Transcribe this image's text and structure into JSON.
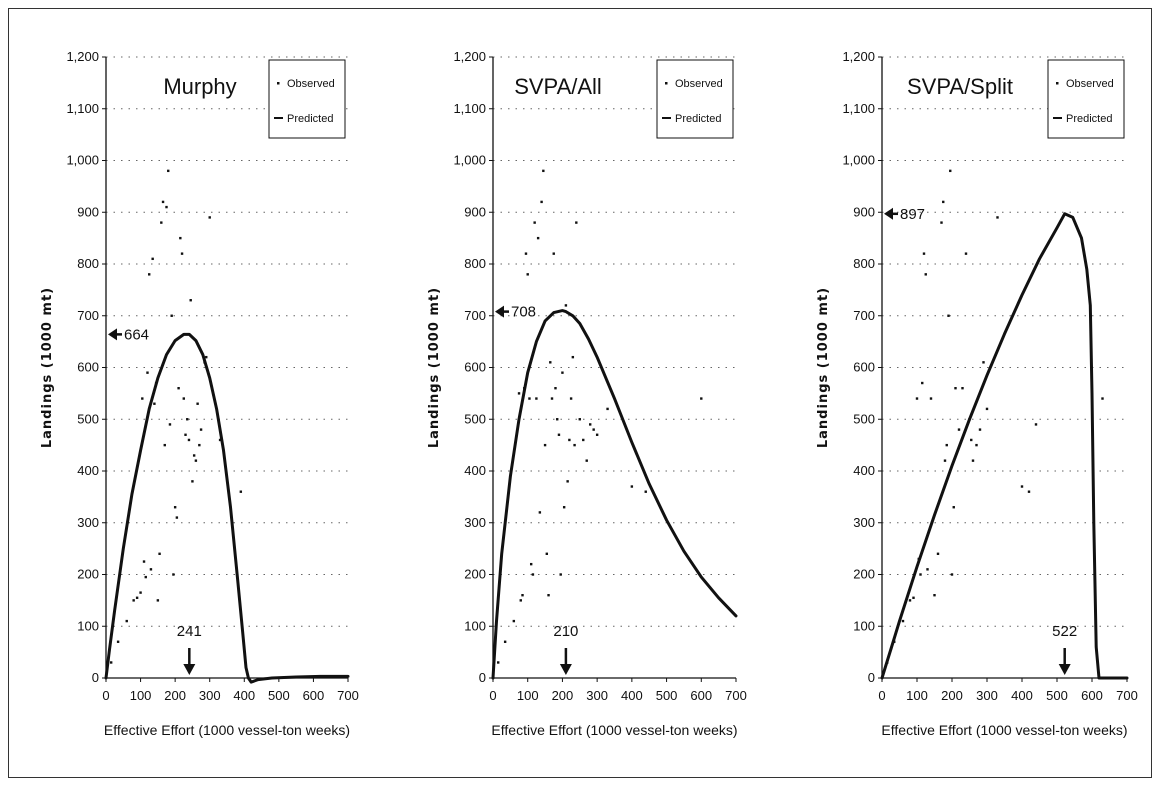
{
  "chart_data": [
    {
      "type": "scatter",
      "title": "Murphy",
      "xlabel": "Effective Effort (1000 vessel-ton weeks)",
      "ylabel": "Landings (1000 mt)",
      "xlim": [
        0,
        700
      ],
      "ylim": [
        0,
        1200
      ],
      "xticks": [
        "0",
        "100",
        "200",
        "300",
        "400",
        "500",
        "600",
        "700"
      ],
      "yticks": [
        "0",
        "100",
        "200",
        "300",
        "400",
        "500",
        "600",
        "700",
        "800",
        "900",
        "1,000",
        "1,100",
        "1,200"
      ],
      "grid": "horizontal-dotted",
      "legend": {
        "position": "top-right",
        "entries": [
          "Observed",
          "Predicted"
        ]
      },
      "series": [
        {
          "name": "Observed",
          "kind": "points",
          "x": [
            15,
            35,
            60,
            80,
            90,
            100,
            105,
            110,
            115,
            120,
            125,
            130,
            135,
            140,
            145,
            150,
            155,
            160,
            165,
            170,
            175,
            180,
            185,
            190,
            195,
            200,
            205,
            210,
            215,
            220,
            225,
            230,
            235,
            240,
            245,
            250,
            255,
            260,
            265,
            270,
            275,
            285,
            290,
            300,
            330,
            390
          ],
          "y": [
            30,
            70,
            110,
            150,
            155,
            165,
            540,
            225,
            195,
            590,
            780,
            210,
            810,
            530,
            570,
            150,
            240,
            880,
            920,
            450,
            910,
            980,
            490,
            700,
            200,
            330,
            310,
            560,
            850,
            820,
            540,
            470,
            500,
            460,
            730,
            380,
            430,
            420,
            530,
            450,
            480,
            610,
            620,
            890,
            460,
            360
          ]
        },
        {
          "name": "Predicted",
          "kind": "line",
          "x": [
            0,
            10,
            25,
            50,
            75,
            100,
            125,
            150,
            175,
            200,
            225,
            241,
            260,
            280,
            300,
            320,
            340,
            360,
            380,
            395,
            405,
            412,
            420,
            440,
            480,
            550,
            620,
            700
          ],
          "y": [
            0,
            55,
            130,
            250,
            355,
            440,
            520,
            580,
            625,
            652,
            664,
            664,
            652,
            625,
            580,
            520,
            440,
            330,
            195,
            90,
            20,
            0,
            -8,
            -3,
            0,
            2,
            3,
            3
          ]
        }
      ],
      "annotations": [
        {
          "text": "664",
          "target": "y",
          "value": 664
        },
        {
          "text": "241",
          "target": "x",
          "value": 241
        }
      ]
    },
    {
      "type": "scatter",
      "title": "SVPA/All",
      "xlabel": "Effective Effort (1000 vessel-ton weeks)",
      "ylabel": "Landings (1000 mt)",
      "xlim": [
        0,
        700
      ],
      "ylim": [
        0,
        1200
      ],
      "xticks": [
        "0",
        "100",
        "200",
        "300",
        "400",
        "500",
        "600",
        "700"
      ],
      "yticks": [
        "0",
        "100",
        "200",
        "300",
        "400",
        "500",
        "600",
        "700",
        "800",
        "900",
        "1,000",
        "1,100",
        "1,200"
      ],
      "grid": "horizontal-dotted",
      "legend": {
        "position": "top-right",
        "entries": [
          "Observed",
          "Predicted"
        ]
      },
      "series": [
        {
          "name": "Observed",
          "kind": "points",
          "x": [
            15,
            35,
            60,
            75,
            80,
            85,
            90,
            95,
            100,
            105,
            110,
            115,
            120,
            125,
            130,
            135,
            140,
            145,
            150,
            155,
            160,
            165,
            170,
            175,
            180,
            185,
            190,
            195,
            200,
            205,
            210,
            215,
            220,
            225,
            230,
            235,
            240,
            250,
            260,
            270,
            280,
            290,
            300,
            330,
            400,
            440,
            600
          ],
          "y": [
            30,
            70,
            110,
            550,
            150,
            160,
            560,
            820,
            780,
            540,
            220,
            200,
            880,
            540,
            850,
            320,
            920,
            980,
            450,
            240,
            160,
            610,
            540,
            820,
            560,
            500,
            470,
            200,
            590,
            330,
            720,
            380,
            460,
            540,
            620,
            450,
            880,
            500,
            460,
            420,
            490,
            480,
            470,
            520,
            370,
            360,
            540
          ]
        },
        {
          "name": "Predicted",
          "kind": "line",
          "x": [
            0,
            10,
            25,
            50,
            75,
            100,
            125,
            150,
            175,
            200,
            210,
            230,
            250,
            275,
            300,
            350,
            400,
            450,
            500,
            550,
            600,
            650,
            700
          ],
          "y": [
            0,
            110,
            240,
            390,
            500,
            590,
            650,
            690,
            706,
            710,
            708,
            700,
            685,
            655,
            620,
            540,
            455,
            375,
            305,
            245,
            195,
            155,
            120
          ]
        }
      ],
      "annotations": [
        {
          "text": "708",
          "target": "y",
          "value": 708
        },
        {
          "text": "210",
          "target": "x",
          "value": 210
        }
      ]
    },
    {
      "type": "scatter",
      "title": "SVPA/Split",
      "xlabel": "Effective Effort (1000 vessel-ton weeks)",
      "ylabel": "Landings (1000 mt)",
      "xlim": [
        0,
        700
      ],
      "ylim": [
        0,
        1200
      ],
      "xticks": [
        "0",
        "100",
        "200",
        "300",
        "400",
        "500",
        "600",
        "700"
      ],
      "yticks": [
        "0",
        "100",
        "200",
        "300",
        "400",
        "500",
        "600",
        "700",
        "800",
        "900",
        "1,000",
        "1,100",
        "1,200"
      ],
      "grid": "horizontal-dotted",
      "legend": {
        "position": "top-right",
        "entries": [
          "Observed",
          "Predicted"
        ]
      },
      "series": [
        {
          "name": "Observed",
          "kind": "points",
          "x": [
            15,
            35,
            60,
            80,
            90,
            100,
            105,
            110,
            115,
            120,
            125,
            130,
            140,
            150,
            160,
            170,
            175,
            180,
            185,
            190,
            195,
            200,
            205,
            210,
            220,
            230,
            240,
            250,
            255,
            260,
            270,
            280,
            290,
            300,
            330,
            400,
            420,
            440,
            630
          ],
          "y": [
            30,
            70,
            110,
            150,
            155,
            540,
            230,
            200,
            570,
            820,
            780,
            210,
            540,
            160,
            240,
            880,
            920,
            420,
            450,
            700,
            980,
            200,
            330,
            560,
            480,
            560,
            820,
            500,
            460,
            420,
            450,
            480,
            610,
            520,
            890,
            370,
            360,
            490,
            540
          ]
        },
        {
          "name": "Predicted",
          "kind": "line",
          "x": [
            0,
            25,
            50,
            100,
            150,
            200,
            250,
            300,
            350,
            400,
            450,
            500,
            522,
            545,
            570,
            585,
            595,
            600,
            605,
            612,
            620,
            650,
            700
          ],
          "y": [
            0,
            55,
            110,
            215,
            315,
            410,
            500,
            585,
            665,
            740,
            810,
            870,
            897,
            890,
            850,
            790,
            720,
            550,
            300,
            60,
            0,
            0,
            0
          ]
        }
      ],
      "annotations": [
        {
          "text": "897",
          "target": "y",
          "value": 897
        },
        {
          "text": "522",
          "target": "x",
          "value": 522
        }
      ]
    }
  ]
}
